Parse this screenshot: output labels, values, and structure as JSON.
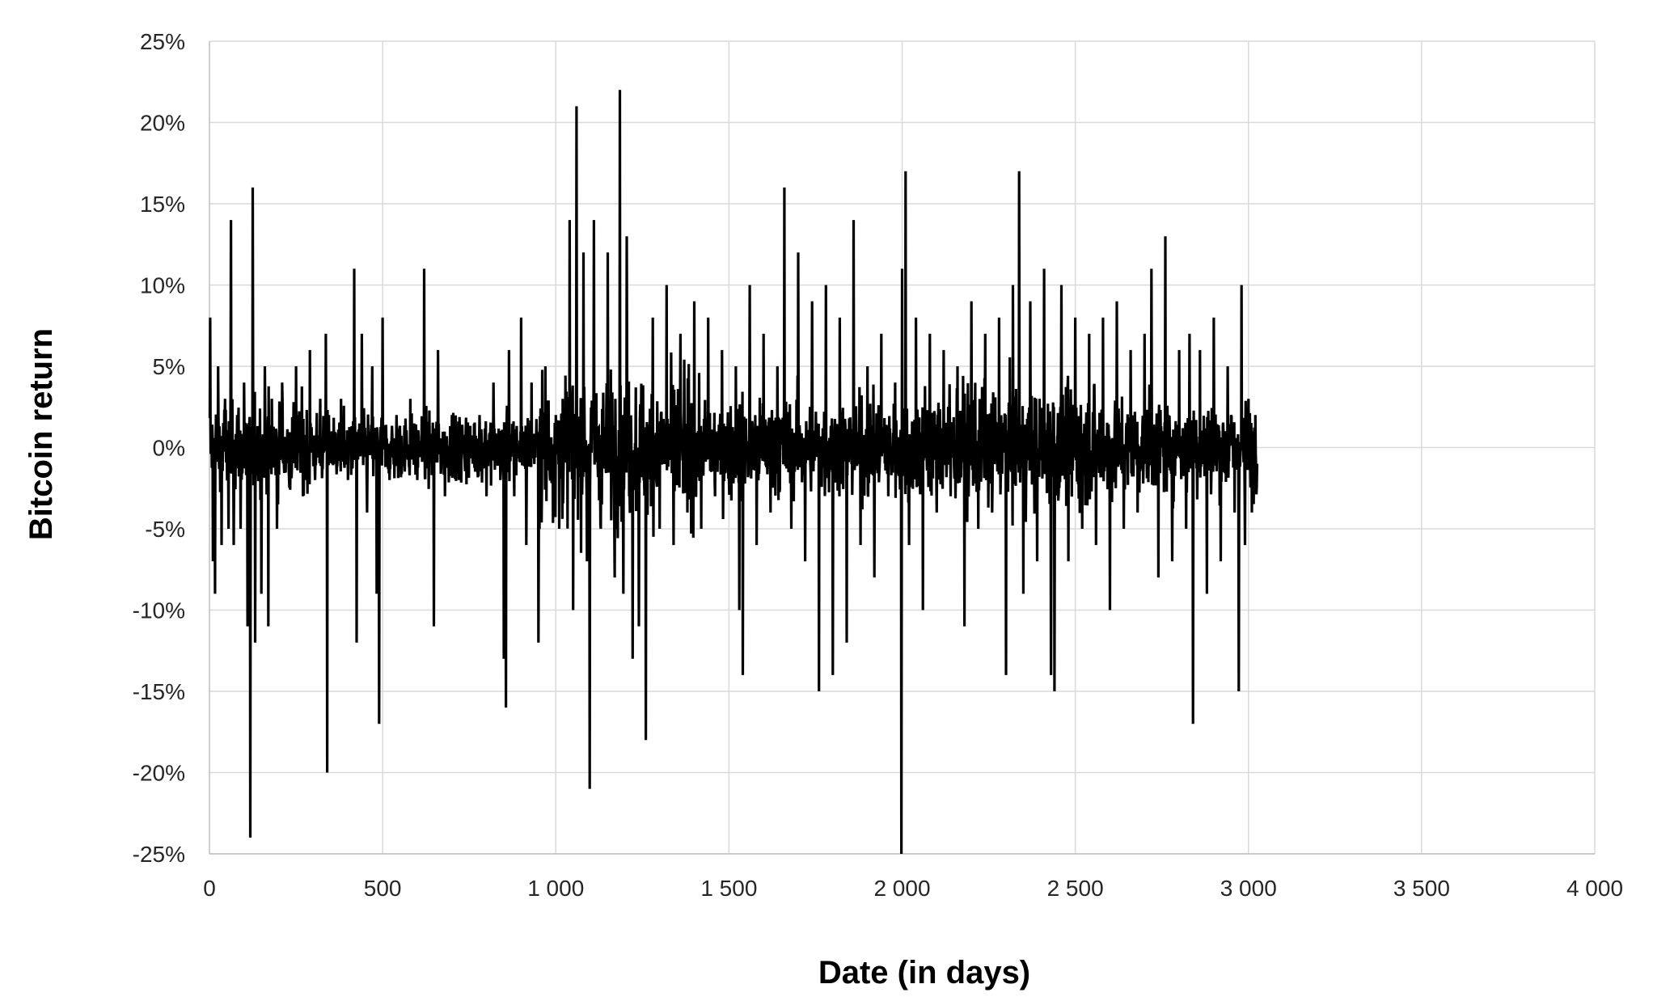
{
  "chart_data": {
    "type": "line",
    "title": "",
    "xlabel": "Date (in days)",
    "ylabel": "Bitcoin return",
    "xlim": [
      0,
      4000
    ],
    "ylim": [
      -0.25,
      0.25
    ],
    "x_ticks": [
      0,
      500,
      1000,
      1500,
      2000,
      2500,
      3000,
      3500,
      4000
    ],
    "x_tick_labels": [
      "0",
      "500",
      "1 000",
      "1 500",
      "2 000",
      "2 500",
      "3 000",
      "3 500",
      "4 000"
    ],
    "y_ticks": [
      0.25,
      0.2,
      0.15,
      0.1,
      0.05,
      0.0,
      -0.05,
      -0.1,
      -0.15,
      -0.2,
      -0.25
    ],
    "y_tick_labels": [
      "25%",
      "20%",
      "15%",
      "10%",
      "5%",
      "0%",
      "-5%",
      "-10%",
      "-15%",
      "-20%",
      "-25%"
    ],
    "grid": true,
    "legend": "none",
    "series_color": "#000000",
    "n_observations": 3025,
    "series": [
      {
        "name": "",
        "x": [
          2,
          10,
          16,
          25,
          35,
          45,
          55,
          62,
          70,
          80,
          90,
          100,
          110,
          118,
          125,
          132,
          140,
          150,
          160,
          170,
          180,
          195,
          210,
          230,
          250,
          270,
          290,
          305,
          320,
          336,
          340,
          345,
          360,
          380,
          400,
          418,
          425,
          440,
          455,
          470,
          483,
          490,
          500,
          520,
          540,
          560,
          580,
          600,
          620,
          640,
          648,
          660,
          680,
          700,
          720,
          740,
          760,
          780,
          800,
          820,
          840,
          850,
          856,
          865,
          880,
          900,
          915,
          930,
          950,
          970,
          990,
          1000,
          1010,
          1020,
          1040,
          1050,
          1060,
          1080,
          1090,
          1098,
          1110,
          1130,
          1150,
          1170,
          1185,
          1195,
          1205,
          1222,
          1240,
          1260,
          1280,
          1300,
          1320,
          1340,
          1360,
          1380,
          1400,
          1420,
          1440,
          1460,
          1480,
          1500,
          1520,
          1530,
          1540,
          1560,
          1580,
          1600,
          1620,
          1640,
          1660,
          1680,
          1700,
          1720,
          1740,
          1760,
          1780,
          1800,
          1820,
          1840,
          1860,
          1880,
          1900,
          1920,
          1940,
          1960,
          1980,
          1998,
          2000,
          2010,
          2020,
          2040,
          2060,
          2080,
          2100,
          2120,
          2140,
          2160,
          2180,
          2200,
          2220,
          2240,
          2260,
          2280,
          2300,
          2320,
          2338,
          2350,
          2370,
          2390,
          2410,
          2430,
          2440,
          2460,
          2480,
          2500,
          2520,
          2540,
          2560,
          2580,
          2600,
          2620,
          2640,
          2660,
          2680,
          2700,
          2720,
          2740,
          2760,
          2780,
          2800,
          2820,
          2830,
          2840,
          2860,
          2880,
          2900,
          2920,
          2940,
          2960,
          2972,
          2980,
          2990,
          3000,
          3010,
          3020,
          3025
        ],
        "values": [
          0.08,
          -0.07,
          -0.09,
          0.05,
          -0.06,
          0.03,
          -0.05,
          0.14,
          -0.06,
          0.02,
          -0.05,
          0.04,
          -0.11,
          -0.24,
          0.16,
          -0.12,
          0.01,
          -0.09,
          0.05,
          -0.11,
          0.03,
          -0.05,
          0.04,
          -0.02,
          0.05,
          -0.03,
          0.06,
          -0.02,
          0.03,
          0.07,
          -0.2,
          0.02,
          -0.01,
          0.03,
          -0.02,
          0.11,
          -0.12,
          0.07,
          -0.04,
          0.05,
          -0.09,
          -0.17,
          0.08,
          -0.02,
          0.02,
          -0.01,
          0.03,
          -0.02,
          0.11,
          -0.01,
          -0.11,
          0.06,
          -0.03,
          0.02,
          -0.02,
          0.01,
          -0.01,
          0.02,
          -0.03,
          0.04,
          -0.02,
          -0.13,
          -0.16,
          0.06,
          -0.03,
          0.08,
          -0.06,
          0.04,
          -0.12,
          0.05,
          -0.02,
          0.02,
          -0.05,
          0.03,
          0.14,
          -0.1,
          0.21,
          0.12,
          -0.07,
          -0.21,
          0.14,
          -0.05,
          0.12,
          -0.08,
          0.22,
          -0.09,
          0.13,
          -0.13,
          -0.11,
          -0.18,
          0.08,
          -0.05,
          0.1,
          -0.06,
          0.07,
          -0.04,
          0.09,
          -0.05,
          0.08,
          -0.03,
          0.06,
          -0.02,
          0.05,
          -0.1,
          -0.14,
          0.1,
          -0.06,
          0.07,
          -0.04,
          0.05,
          0.16,
          -0.05,
          0.12,
          -0.07,
          0.09,
          -0.15,
          0.1,
          -0.14,
          0.08,
          -0.12,
          0.14,
          -0.06,
          0.05,
          -0.08,
          0.07,
          -0.03,
          0.04,
          -0.25,
          0.11,
          0.17,
          -0.06,
          0.08,
          -0.1,
          0.07,
          -0.04,
          0.06,
          -0.03,
          0.05,
          -0.11,
          0.09,
          -0.05,
          0.07,
          -0.04,
          0.08,
          -0.14,
          0.1,
          0.17,
          -0.09,
          0.09,
          -0.07,
          0.11,
          -0.14,
          -0.15,
          0.1,
          -0.07,
          0.08,
          -0.05,
          0.07,
          -0.06,
          0.08,
          -0.1,
          0.09,
          -0.05,
          0.06,
          -0.04,
          0.07,
          0.11,
          -0.08,
          0.13,
          -0.07,
          0.06,
          -0.05,
          0.07,
          -0.17,
          0.06,
          -0.09,
          0.08,
          -0.07,
          0.05,
          -0.04,
          -0.15,
          0.1,
          -0.06,
          0.03,
          -0.04,
          0.02,
          -0.01
        ]
      }
    ]
  }
}
